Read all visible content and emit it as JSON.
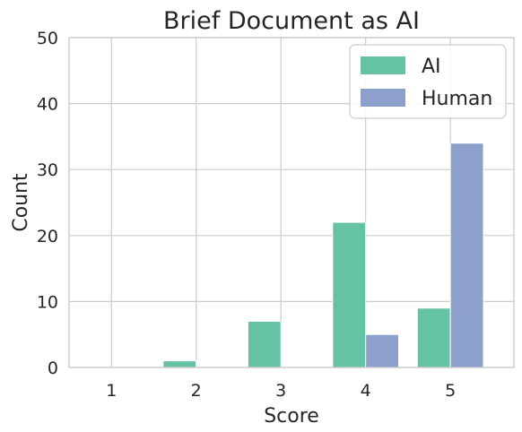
{
  "chart_data": {
    "type": "bar",
    "title": "Brief Document as AI",
    "xlabel": "Score",
    "ylabel": "Count",
    "categories": [
      "1",
      "2",
      "3",
      "4",
      "5"
    ],
    "ylim": [
      0,
      50
    ],
    "yticks": [
      0,
      10,
      20,
      30,
      40,
      50
    ],
    "grid": true,
    "legend_position": "top-right",
    "series": [
      {
        "name": "AI",
        "color": "#66c2a5",
        "values": [
          0,
          1,
          7,
          22,
          9
        ]
      },
      {
        "name": "Human",
        "color": "#8da0cb",
        "values": [
          0,
          0,
          0,
          5,
          34
        ]
      }
    ]
  }
}
